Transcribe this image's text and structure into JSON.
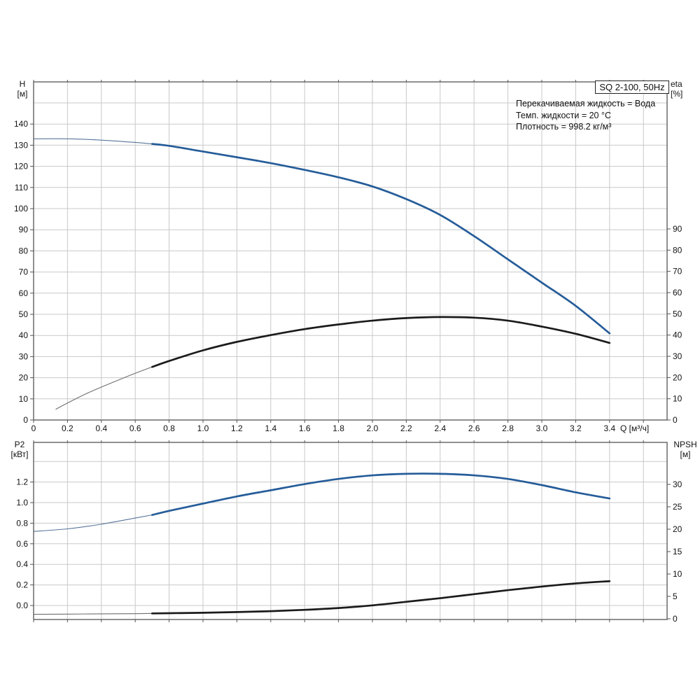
{
  "title_box": "SQ 2-100, 50Hz",
  "info": {
    "line1": "Перекачиваемая жидкость = Вода",
    "line2": "Темп. жидкости = 20 °C",
    "line3": "Плотность = 998.2 кг/м³"
  },
  "colors": {
    "grid": "#c9c9c9",
    "border": "#555555",
    "tick_text": "#111111",
    "curve_blue": "#255c99",
    "curve_blue_thin": "#57749b",
    "curve_black": "#1b1b1b",
    "curve_black_thin": "#6f6f6f"
  },
  "chart_data": [
    {
      "type": "line",
      "title": "SQ 2-100, 50Hz",
      "x": {
        "label": "Q [м³/ч]",
        "min": 0,
        "max": 3.74,
        "tick_step": 0.2,
        "tick_labels": [
          "0",
          "0.2",
          "0.4",
          "0.6",
          "0.8",
          "1.0",
          "1.2",
          "1.4",
          "1.6",
          "1.8",
          "2.0",
          "2.2",
          "2.4",
          "2.6",
          "2.8",
          "3.0",
          "3.2",
          "3.4"
        ]
      },
      "left": {
        "name": "H",
        "unit": "[м]",
        "min": 0,
        "max": 160,
        "tick_labels": [
          "0",
          "10",
          "20",
          "30",
          "40",
          "50",
          "60",
          "70",
          "80",
          "90",
          "100",
          "110",
          "120",
          "130",
          "140"
        ],
        "grid_values": [
          10,
          20,
          30,
          40,
          50,
          60,
          70,
          80,
          90,
          100,
          110,
          120,
          130,
          140,
          150
        ]
      },
      "right": {
        "name": "eta",
        "unit": "[%]",
        "min": 0,
        "max": 159,
        "tick_labels": [
          "0",
          "10",
          "20",
          "30",
          "40",
          "50",
          "60",
          "70",
          "80",
          "90"
        ]
      },
      "series": [
        {
          "name": "H (head curve)",
          "axis": "left",
          "thick_from": 0.7,
          "color": "curve_blue",
          "thin_color": "curve_blue_thin",
          "points": [
            [
              0,
              133
            ],
            [
              0.2,
              133
            ],
            [
              0.4,
              132.4
            ],
            [
              0.6,
              131.3
            ],
            [
              0.7,
              130.6
            ],
            [
              0.8,
              129.7
            ],
            [
              1.0,
              127
            ],
            [
              1.2,
              124.3
            ],
            [
              1.4,
              121.5
            ],
            [
              1.6,
              118.3
            ],
            [
              1.8,
              114.8
            ],
            [
              2.0,
              110.5
            ],
            [
              2.2,
              104.5
            ],
            [
              2.4,
              97
            ],
            [
              2.6,
              87
            ],
            [
              2.8,
              76
            ],
            [
              3.0,
              65
            ],
            [
              3.2,
              54
            ],
            [
              3.4,
              41
            ]
          ]
        },
        {
          "name": "eta (efficiency curve)",
          "axis": "right",
          "thick_from": 0.7,
          "color": "curve_black",
          "thin_color": "curve_black_thin",
          "points": [
            [
              0.13,
              5
            ],
            [
              0.2,
              8
            ],
            [
              0.3,
              12
            ],
            [
              0.4,
              15.5
            ],
            [
              0.5,
              18.8
            ],
            [
              0.6,
              22
            ],
            [
              0.7,
              25
            ],
            [
              0.8,
              27.8
            ],
            [
              1.0,
              32.8
            ],
            [
              1.2,
              36.8
            ],
            [
              1.4,
              40
            ],
            [
              1.6,
              42.8
            ],
            [
              1.8,
              45
            ],
            [
              2.0,
              46.8
            ],
            [
              2.2,
              48
            ],
            [
              2.4,
              48.5
            ],
            [
              2.6,
              48.2
            ],
            [
              2.8,
              46.8
            ],
            [
              3.0,
              44
            ],
            [
              3.2,
              40.6
            ],
            [
              3.4,
              36.3
            ]
          ]
        }
      ]
    },
    {
      "type": "line",
      "title": "P2 / NPSH",
      "x": {
        "label": "",
        "min": 0,
        "max": 3.74,
        "tick_step": 0.2,
        "tick_labels": [
          "0",
          "0.2",
          "0.4",
          "0.6",
          "0.8",
          "1.0",
          "1.2",
          "1.4",
          "1.6",
          "1.8",
          "2.0",
          "2.2",
          "2.4",
          "2.6",
          "2.8",
          "3.0",
          "3.2",
          "3.4"
        ]
      },
      "left": {
        "name": "P2",
        "unit": "[кВт]",
        "min": 0,
        "max": 1.6,
        "tick_labels": [
          "0.0",
          "0.2",
          "0.4",
          "0.6",
          "0.8",
          "1.0",
          "1.2"
        ],
        "grid_values": [
          0,
          0.2,
          0.4,
          0.6,
          0.8,
          1.0,
          1.2,
          1.4
        ]
      },
      "right": {
        "name": "NPSH",
        "unit": "[м]",
        "min": 0,
        "max": 39,
        "tick_labels": [
          "0",
          "5",
          "10",
          "15",
          "20",
          "25",
          "30"
        ]
      },
      "series": [
        {
          "name": "P2 (shaft power curve)",
          "axis": "left",
          "thick_from": 0.7,
          "color": "curve_blue",
          "thin_color": "curve_blue_thin",
          "points": [
            [
              0,
              0.72
            ],
            [
              0.2,
              0.745
            ],
            [
              0.4,
              0.79
            ],
            [
              0.6,
              0.85
            ],
            [
              0.7,
              0.88
            ],
            [
              0.8,
              0.92
            ],
            [
              1.0,
              0.99
            ],
            [
              1.2,
              1.06
            ],
            [
              1.4,
              1.12
            ],
            [
              1.6,
              1.18
            ],
            [
              1.8,
              1.23
            ],
            [
              2.0,
              1.265
            ],
            [
              2.2,
              1.28
            ],
            [
              2.4,
              1.28
            ],
            [
              2.6,
              1.265
            ],
            [
              2.8,
              1.23
            ],
            [
              3.0,
              1.17
            ],
            [
              3.2,
              1.1
            ],
            [
              3.4,
              1.04
            ]
          ]
        },
        {
          "name": "NPSH curve",
          "axis": "right",
          "thick_from": 0.7,
          "color": "curve_black",
          "thin_color": "curve_black_thin",
          "points": [
            [
              0,
              1.0
            ],
            [
              0.2,
              1.05
            ],
            [
              0.4,
              1.1
            ],
            [
              0.6,
              1.15
            ],
            [
              0.7,
              1.2
            ],
            [
              0.8,
              1.25
            ],
            [
              1.0,
              1.35
            ],
            [
              1.2,
              1.5
            ],
            [
              1.4,
              1.7
            ],
            [
              1.6,
              2.0
            ],
            [
              1.8,
              2.4
            ],
            [
              2.0,
              3.0
            ],
            [
              2.2,
              3.8
            ],
            [
              2.4,
              4.6
            ],
            [
              2.6,
              5.5
            ],
            [
              2.8,
              6.4
            ],
            [
              3.0,
              7.2
            ],
            [
              3.2,
              7.9
            ],
            [
              3.4,
              8.4
            ]
          ]
        }
      ]
    }
  ]
}
